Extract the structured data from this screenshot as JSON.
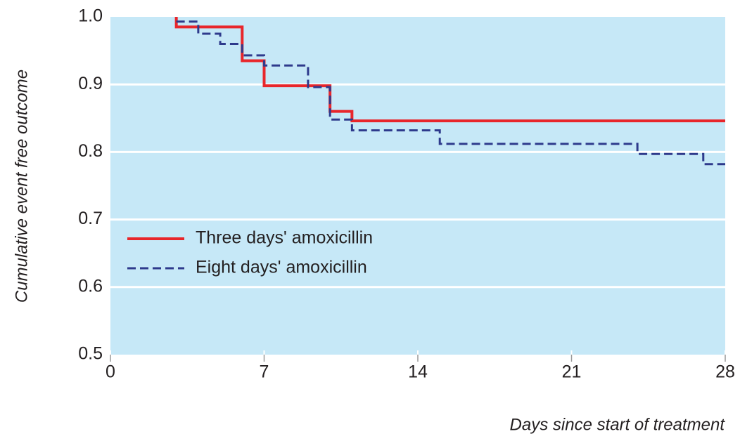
{
  "chart_data": {
    "type": "step",
    "ylabel": "Cumulative event free outcome",
    "xlabel": "Days since start of treatment",
    "xlim": [
      0,
      28
    ],
    "xticks": [
      0,
      7,
      14,
      21,
      28
    ],
    "ylim": [
      0.5,
      1.0
    ],
    "yticks": [
      {
        "value": 0.5,
        "label": "0.5"
      },
      {
        "value": 0.6,
        "label": "0.6"
      },
      {
        "value": 0.7,
        "label": "0.7"
      },
      {
        "value": 0.8,
        "label": "0.8"
      },
      {
        "value": 0.9,
        "label": "0.9"
      },
      {
        "value": 1.0,
        "label": "1.0"
      }
    ],
    "grid": true,
    "background": "#c6e8f7",
    "legend": "center left",
    "series": [
      {
        "name": "Three days' amoxicillin",
        "color": "#e8262b",
        "dash": false,
        "x": [
          3,
          3,
          6,
          7,
          10,
          11,
          28
        ],
        "values": [
          1.0,
          0.985,
          0.935,
          0.898,
          0.86,
          0.846,
          0.846
        ]
      },
      {
        "name": "Eight days' amoxicillin",
        "color": "#2e3a8c",
        "dash": true,
        "x": [
          3,
          4,
          5,
          6,
          7,
          9,
          10,
          11,
          15,
          24,
          27,
          28
        ],
        "values": [
          0.993,
          0.975,
          0.96,
          0.943,
          0.928,
          0.896,
          0.848,
          0.832,
          0.812,
          0.797,
          0.782,
          0.782
        ]
      }
    ]
  }
}
